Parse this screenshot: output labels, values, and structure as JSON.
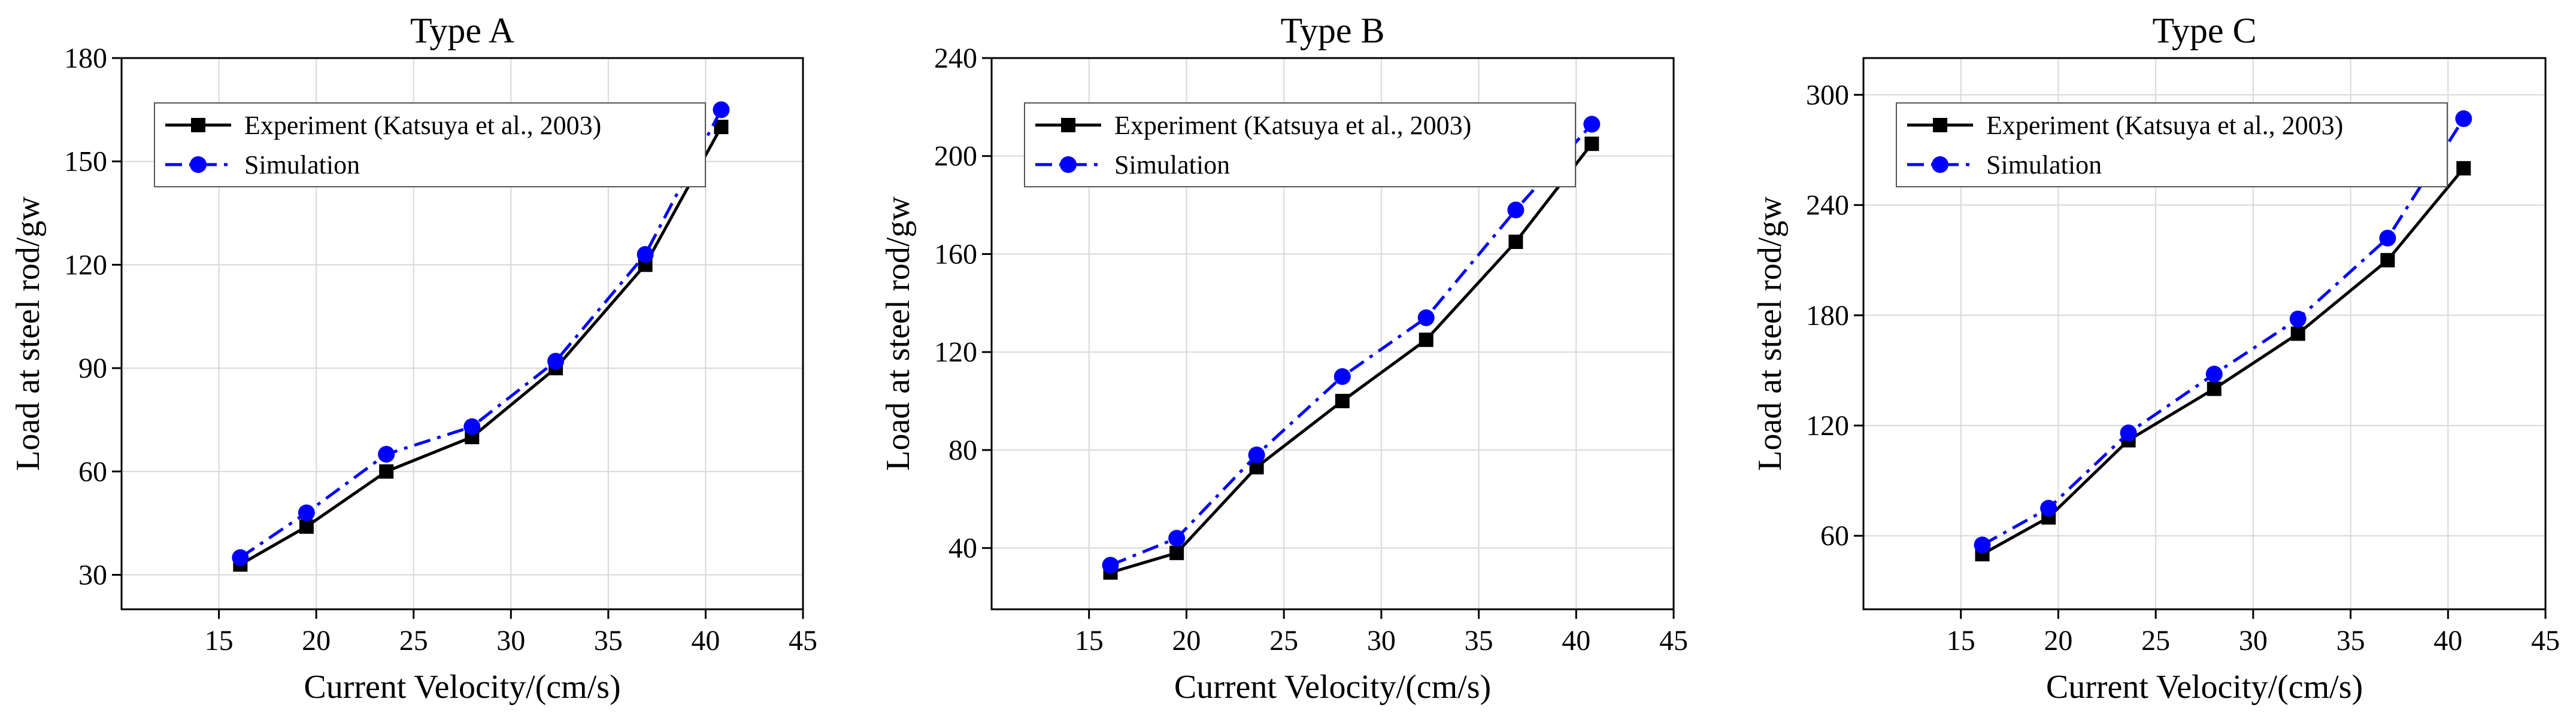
{
  "chart_data": [
    {
      "type": "line",
      "title": "Type A",
      "xlabel": "Current Velocity/(cm/s)",
      "ylabel": "Load at steel rod/gw",
      "xlim": [
        10,
        45
      ],
      "ylim": [
        20,
        180
      ],
      "xticks": [
        15,
        20,
        25,
        30,
        35,
        40,
        45
      ],
      "yticks": [
        30,
        60,
        90,
        120,
        150,
        180
      ],
      "grid": true,
      "legend_position": "top-left",
      "x": [
        16.1,
        19.5,
        23.6,
        28.0,
        32.3,
        36.9,
        40.8
      ],
      "series": [
        {
          "name": "Experiment (Katsuya et al., 2003)",
          "values": [
            33,
            44,
            60,
            70,
            90,
            120,
            160
          ],
          "color": "#000000",
          "marker": "square",
          "line_style": "solid"
        },
        {
          "name": "Simulation",
          "values": [
            35,
            48,
            65,
            73,
            92,
            123,
            165
          ],
          "color": "#0000ff",
          "marker": "circle",
          "line_style": "dash-dot"
        }
      ]
    },
    {
      "type": "line",
      "title": "Type B",
      "xlabel": "Current Velocity/(cm/s)",
      "ylabel": "Load at steel rod/gw",
      "xlim": [
        10,
        45
      ],
      "ylim": [
        15,
        240
      ],
      "xticks": [
        15,
        20,
        25,
        30,
        35,
        40,
        45
      ],
      "yticks": [
        40,
        80,
        120,
        160,
        200,
        240
      ],
      "grid": true,
      "legend_position": "top-left",
      "x": [
        16.1,
        19.5,
        23.6,
        28.0,
        32.3,
        36.9,
        40.8
      ],
      "series": [
        {
          "name": "Experiment (Katsuya et al., 2003)",
          "values": [
            30,
            38,
            73,
            100,
            125,
            165,
            205
          ],
          "color": "#000000",
          "marker": "square",
          "line_style": "solid"
        },
        {
          "name": "Simulation",
          "values": [
            33,
            44,
            78,
            110,
            134,
            178,
            213
          ],
          "color": "#0000ff",
          "marker": "circle",
          "line_style": "dash-dot"
        }
      ]
    },
    {
      "type": "line",
      "title": "Type C",
      "xlabel": "Current Velocity/(cm/s)",
      "ylabel": "Load at steel rod/gw",
      "xlim": [
        10,
        45
      ],
      "ylim": [
        20,
        320
      ],
      "xticks": [
        15,
        20,
        25,
        30,
        35,
        40,
        45
      ],
      "yticks": [
        60,
        120,
        180,
        240,
        300
      ],
      "grid": true,
      "legend_position": "top-left",
      "x": [
        16.1,
        19.5,
        23.6,
        28.0,
        32.3,
        36.9,
        40.8
      ],
      "series": [
        {
          "name": "Experiment (Katsuya et al., 2003)",
          "values": [
            50,
            70,
            112,
            140,
            170,
            210,
            260
          ],
          "color": "#000000",
          "marker": "square",
          "line_style": "solid"
        },
        {
          "name": "Simulation",
          "values": [
            55,
            75,
            116,
            148,
            178,
            222,
            287
          ],
          "color": "#0000ff",
          "marker": "circle",
          "line_style": "dash-dot"
        }
      ]
    }
  ]
}
